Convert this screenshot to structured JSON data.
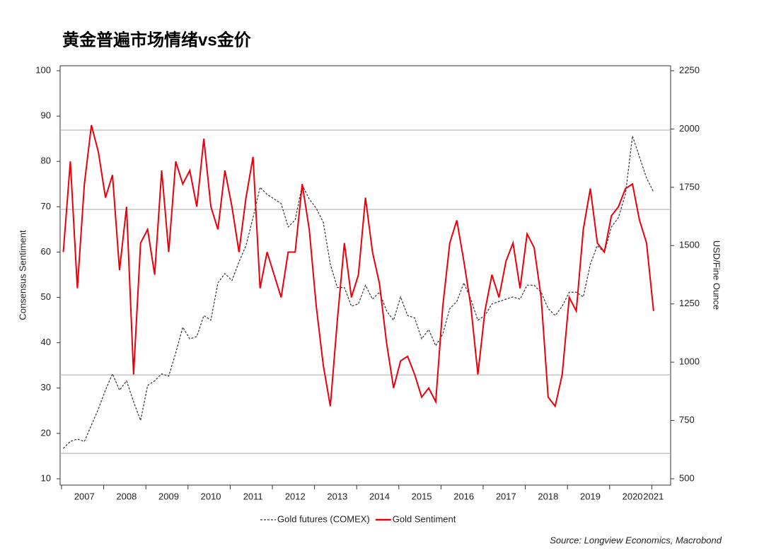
{
  "chart_data": {
    "type": "line",
    "title": "黄金普遍市场情绪vs金价",
    "ylabel": "Consensus Sentiment",
    "y2label": "USD/Fine Ounce",
    "source": "Source: Longview Economics, Macrobond",
    "categories": [
      null,
      null,
      null,
      "2007",
      null,
      null,
      null,
      null,
      null,
      "2008",
      null,
      null,
      null,
      null,
      null,
      "2009",
      null,
      null,
      null,
      null,
      null,
      "2010",
      null,
      null,
      null,
      null,
      null,
      "2011",
      null,
      null,
      null,
      null,
      null,
      "2012",
      null,
      null,
      null,
      null,
      null,
      "2013",
      null,
      null,
      null,
      null,
      null,
      "2014",
      null,
      null,
      null,
      null,
      null,
      "2015",
      null,
      null,
      null,
      null,
      null,
      "2016",
      null,
      null,
      null,
      null,
      null,
      "2017",
      null,
      null,
      null,
      null,
      null,
      "2018",
      null,
      null,
      null,
      null,
      null,
      "2019",
      null,
      null,
      null,
      null,
      null,
      "2020",
      null,
      null,
      "2021"
    ],
    "series": [
      {
        "name": "Gold futures (COMEX)",
        "color": "#333333",
        "dashed": true,
        "axis": "y2",
        "values": [
          630,
          660,
          670,
          660,
          730,
          800,
          880,
          950,
          880,
          920,
          830,
          750,
          900,
          920,
          950,
          940,
          1040,
          1150,
          1100,
          1110,
          1200,
          1180,
          1340,
          1380,
          1350,
          1430,
          1500,
          1620,
          1750,
          1720,
          1700,
          1680,
          1580,
          1610,
          1760,
          1700,
          1660,
          1600,
          1420,
          1320,
          1320,
          1240,
          1250,
          1330,
          1270,
          1300,
          1220,
          1180,
          1280,
          1200,
          1190,
          1100,
          1140,
          1070,
          1120,
          1230,
          1260,
          1340,
          1270,
          1180,
          1200,
          1250,
          1260,
          1270,
          1280,
          1270,
          1330,
          1330,
          1300,
          1230,
          1200,
          1240,
          1300,
          1300,
          1280,
          1420,
          1500,
          1470,
          1580,
          1620,
          1720,
          1970,
          1880,
          1790,
          1730
        ]
      },
      {
        "name": "Gold Sentiment",
        "color": "#e8000b",
        "dashed": false,
        "values": [
          60,
          80,
          52,
          75,
          88,
          82,
          72,
          77,
          56,
          70,
          33,
          62,
          65,
          55,
          78,
          60,
          80,
          75,
          78,
          70,
          85,
          70,
          65,
          78,
          70,
          60,
          72,
          81,
          52,
          60,
          55,
          50,
          60,
          60,
          75,
          65,
          48,
          35,
          26,
          45,
          62,
          50,
          55,
          72,
          60,
          53,
          40,
          30,
          36,
          37,
          33,
          28,
          30,
          27,
          48,
          62,
          67,
          58,
          48,
          33,
          47,
          55,
          50,
          58,
          62,
          52,
          64,
          61,
          50,
          28,
          26,
          33,
          50,
          47,
          65,
          74,
          62,
          60,
          68,
          70,
          74,
          75,
          67,
          62,
          47
        ]
      }
    ],
    "ylim": [
      10,
      100
    ],
    "yticks": [
      10,
      20,
      30,
      40,
      50,
      60,
      70,
      80,
      90,
      100
    ],
    "y2lim": [
      500,
      2250
    ],
    "y2ticks": [
      500,
      750,
      1000,
      1250,
      1500,
      1750,
      2000,
      2250
    ],
    "hlines": [
      86.9,
      69.4,
      32.9,
      15.6
    ]
  }
}
